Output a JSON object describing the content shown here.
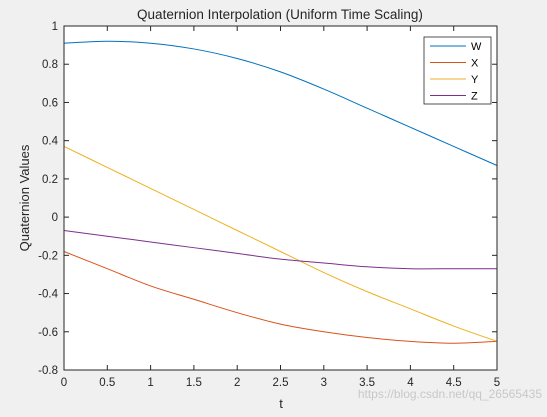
{
  "chart_data": {
    "type": "line",
    "title": "Quaternion Interpolation (Uniform Time Scaling)",
    "xlabel": "t",
    "ylabel": "Quaternion Values",
    "xlim": [
      0,
      5
    ],
    "ylim": [
      -0.8,
      1
    ],
    "xticks": [
      "0",
      "0.5",
      "1",
      "1.5",
      "2",
      "2.5",
      "3",
      "3.5",
      "4",
      "4.5",
      "5"
    ],
    "yticks": [
      "-0.8",
      "-0.6",
      "-0.4",
      "-0.2",
      "0",
      "0.2",
      "0.4",
      "0.6",
      "0.8",
      "1"
    ],
    "grid": false,
    "legend_position": "top-right",
    "x": [
      0,
      0.5,
      1,
      1.5,
      2,
      2.5,
      3,
      3.5,
      4,
      4.5,
      5
    ],
    "series": [
      {
        "name": "W",
        "color": "#0072BD",
        "values": [
          0.91,
          0.92,
          0.91,
          0.88,
          0.83,
          0.76,
          0.67,
          0.57,
          0.47,
          0.37,
          0.27
        ]
      },
      {
        "name": "X",
        "color": "#D95319",
        "values": [
          -0.18,
          -0.27,
          -0.36,
          -0.43,
          -0.5,
          -0.56,
          -0.6,
          -0.63,
          -0.65,
          -0.66,
          -0.65
        ]
      },
      {
        "name": "Y",
        "color": "#EDB120",
        "values": [
          0.37,
          0.26,
          0.15,
          0.04,
          -0.07,
          -0.18,
          -0.29,
          -0.39,
          -0.48,
          -0.57,
          -0.65
        ]
      },
      {
        "name": "Z",
        "color": "#7E2F8E",
        "values": [
          -0.07,
          -0.1,
          -0.13,
          -0.16,
          -0.19,
          -0.22,
          -0.24,
          -0.26,
          -0.27,
          -0.27,
          -0.27
        ]
      }
    ]
  },
  "watermark": "https://blog.csdn.net/qq_26565435"
}
